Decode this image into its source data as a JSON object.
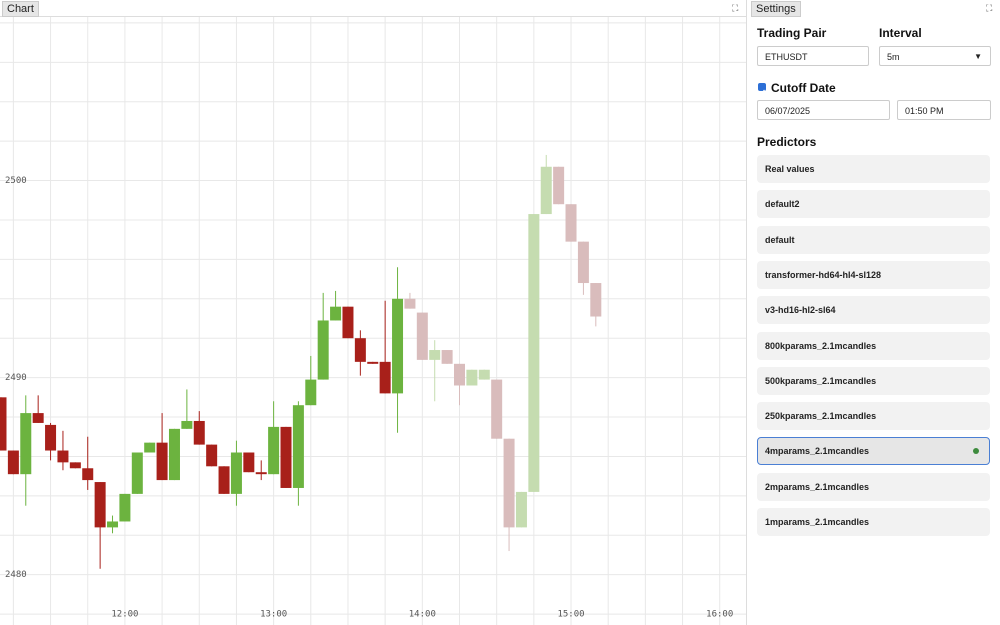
{
  "chart_panel": {
    "tab": "Chart"
  },
  "settings": {
    "tab": "Settings",
    "trading_pair_label": "Trading Pair",
    "trading_pair": "ETHUSDT",
    "interval_label": "Interval",
    "interval": "5m",
    "cutoff_label": "Cutoff Date",
    "cutoff_enabled": true,
    "cutoff_date": "06/07/2025",
    "cutoff_time": "01:50 PM",
    "predictors_label": "Predictors",
    "predictors": [
      "Real values",
      "default2",
      "default",
      "transformer-hd64-hl4-sl128",
      "v3-hd16-hl2-sl64",
      "800kparams_2.1mcandles",
      "500kparams_2.1mcandles",
      "250kparams_2.1mcandles",
      "4mparams_2.1mcandles",
      "2mparams_2.1mcandles",
      "1mparams_2.1mcandles"
    ],
    "selected_predictor": 8,
    "selected_color": "#3d8b3d"
  },
  "chart_data": {
    "type": "candlestick",
    "xlim": [
      "11:09:36",
      "16:10:36"
    ],
    "xticks": [
      "12:00",
      "13:00",
      "14:00",
      "15:00",
      "16:00"
    ],
    "xgrid": [
      "11:15",
      "11:30",
      "11:45",
      "12:00",
      "12:15",
      "12:30",
      "12:45",
      "13:00",
      "13:15",
      "13:30",
      "13:45",
      "14:00",
      "14:15",
      "14:30",
      "14:45",
      "15:00",
      "15:15",
      "15:30",
      "15:45",
      "16:00"
    ],
    "ylim": [
      2477.7,
      2508.3
    ],
    "yticks": [
      2480,
      2490,
      2500
    ],
    "ygrid": [
      2478,
      2480,
      2482,
      2484,
      2486,
      2488,
      2490,
      2492,
      2494,
      2496,
      2498,
      2500,
      2502,
      2504,
      2506,
      2508
    ],
    "series": [
      {
        "up_color": "#6cb33f",
        "down_color": "#a8201a",
        "x": [
          "11:10",
          "11:15",
          "11:20",
          "11:25",
          "11:30",
          "11:35",
          "11:40",
          "11:45",
          "11:50",
          "11:55",
          "12:00",
          "12:05",
          "12:10",
          "12:15",
          "12:20",
          "12:25",
          "12:30",
          "12:35",
          "12:40",
          "12:45",
          "12:50",
          "12:55",
          "13:00",
          "13:05",
          "13:10",
          "13:15",
          "13:20",
          "13:25",
          "13:30",
          "13:35",
          "13:40",
          "13:45",
          "13:50"
        ],
        "open": [
          2489.0,
          2486.3,
          2485.1,
          2488.2,
          2487.6,
          2486.3,
          2485.7,
          2485.4,
          2484.7,
          2482.4,
          2482.7,
          2484.1,
          2486.2,
          2486.7,
          2484.8,
          2487.4,
          2487.8,
          2486.6,
          2485.5,
          2484.1,
          2486.2,
          2485.2,
          2485.1,
          2487.5,
          2484.4,
          2488.6,
          2489.9,
          2492.9,
          2493.6,
          2492.0,
          2490.8,
          2490.8,
          2489.2
        ],
        "high": [
          2489.0,
          2486.3,
          2489.1,
          2489.1,
          2487.7,
          2487.3,
          2485.7,
          2487.0,
          2484.7,
          2483.0,
          2484.1,
          2486.2,
          2486.7,
          2488.2,
          2487.4,
          2489.4,
          2488.3,
          2486.6,
          2485.5,
          2486.8,
          2486.2,
          2485.8,
          2488.8,
          2487.5,
          2488.8,
          2491.1,
          2494.3,
          2494.4,
          2493.6,
          2492.4,
          2490.8,
          2493.9,
          2495.6
        ],
        "low": [
          2486.3,
          2485.1,
          2483.5,
          2487.7,
          2485.8,
          2485.3,
          2485.4,
          2484.3,
          2480.3,
          2482.1,
          2482.7,
          2484.1,
          2486.2,
          2484.8,
          2484.8,
          2487.4,
          2486.6,
          2485.5,
          2484.1,
          2483.5,
          2485.2,
          2484.8,
          2485.1,
          2484.4,
          2483.5,
          2488.6,
          2489.9,
          2492.9,
          2492.0,
          2490.1,
          2490.7,
          2489.2,
          2487.2
        ],
        "close": [
          2486.3,
          2485.1,
          2488.2,
          2487.7,
          2486.3,
          2485.7,
          2485.4,
          2484.8,
          2482.4,
          2482.7,
          2484.1,
          2486.2,
          2486.7,
          2484.8,
          2487.4,
          2487.8,
          2486.6,
          2485.5,
          2484.1,
          2486.2,
          2485.2,
          2485.1,
          2487.5,
          2484.4,
          2488.6,
          2489.9,
          2492.9,
          2493.6,
          2492.0,
          2490.8,
          2490.7,
          2489.2,
          2494.0
        ]
      },
      {
        "up_color": "#c5dcb0",
        "down_color": "#d9bcbc",
        "x": [
          "13:55",
          "14:00",
          "14:05",
          "14:10",
          "14:15",
          "14:20",
          "14:25",
          "14:30",
          "14:35",
          "14:40",
          "14:45",
          "14:50",
          "14:55",
          "15:00",
          "15:05",
          "15:10"
        ],
        "open": [
          2494.0,
          2493.3,
          2490.9,
          2491.4,
          2490.7,
          2489.6,
          2489.9,
          2489.9,
          2486.9,
          2482.4,
          2484.2,
          2498.3,
          2500.7,
          2498.8,
          2496.9,
          2494.8
        ],
        "high": [
          2494.3,
          2493.3,
          2491.9,
          2491.4,
          2490.7,
          2490.4,
          2490.4,
          2489.9,
          2486.9,
          2484.2,
          2498.3,
          2501.3,
          2500.7,
          2498.8,
          2496.9,
          2494.8
        ],
        "low": [
          2493.5,
          2490.9,
          2488.8,
          2490.7,
          2488.6,
          2489.6,
          2489.9,
          2486.9,
          2481.2,
          2482.4,
          2484.2,
          2498.3,
          2498.8,
          2496.9,
          2494.2,
          2492.6
        ],
        "close": [
          2493.5,
          2490.9,
          2491.4,
          2490.7,
          2489.6,
          2490.4,
          2490.4,
          2486.9,
          2482.4,
          2484.2,
          2498.3,
          2500.7,
          2498.8,
          2496.9,
          2494.8,
          2493.1
        ]
      }
    ]
  }
}
